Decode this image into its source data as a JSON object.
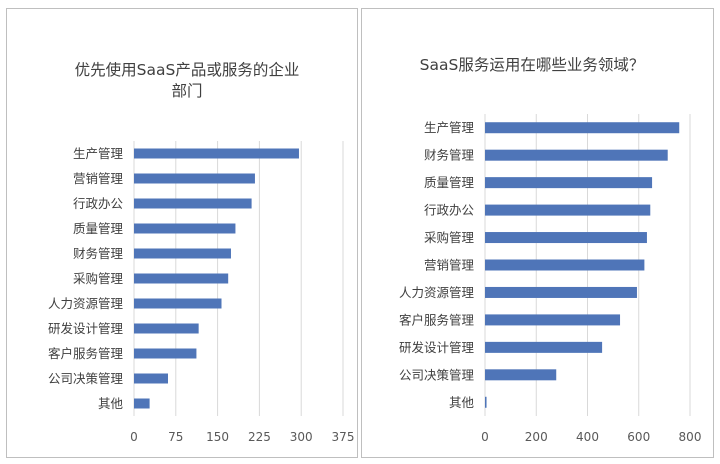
{
  "colors": {
    "bar": "#4f75b8",
    "grid": "#d9d9d9",
    "border": "#bfbfbf",
    "text": "#404040"
  },
  "chart_data": [
    {
      "type": "bar",
      "orientation": "horizontal",
      "title": "优先使用SaaS产品或服务的企业部门",
      "title_lines": [
        "优先使用SaaS产品或服务的企业",
        "部门"
      ],
      "categories": [
        "生产管理",
        "营销管理",
        "行政办公",
        "质量管理",
        "财务管理",
        "采购管理",
        "人力资源管理",
        "研发设计管理",
        "客户服务管理",
        "公司决策管理",
        "其他"
      ],
      "values": [
        296,
        217,
        211,
        182,
        174,
        169,
        157,
        116,
        112,
        61,
        28
      ],
      "xlim": [
        0,
        375
      ],
      "xticks": [
        0,
        75,
        150,
        225,
        300,
        375
      ],
      "grid": true,
      "legend": false
    },
    {
      "type": "bar",
      "orientation": "horizontal",
      "title": "SaaS服务运用在哪些业务领域？",
      "title_lines": [
        "SaaS服务运用在哪些业务领域？"
      ],
      "categories": [
        "生产管理",
        "财务管理",
        "质量管理",
        "行政办公",
        "采购管理",
        "营销管理",
        "人力资源管理",
        "客户服务管理",
        "研发设计管理",
        "公司决策管理",
        "其他"
      ],
      "values": [
        758,
        713,
        652,
        645,
        632,
        622,
        593,
        527,
        457,
        278,
        6
      ],
      "xlim": [
        0,
        800
      ],
      "xticks": [
        0,
        200,
        400,
        600,
        800
      ],
      "grid": true,
      "legend": false
    }
  ]
}
